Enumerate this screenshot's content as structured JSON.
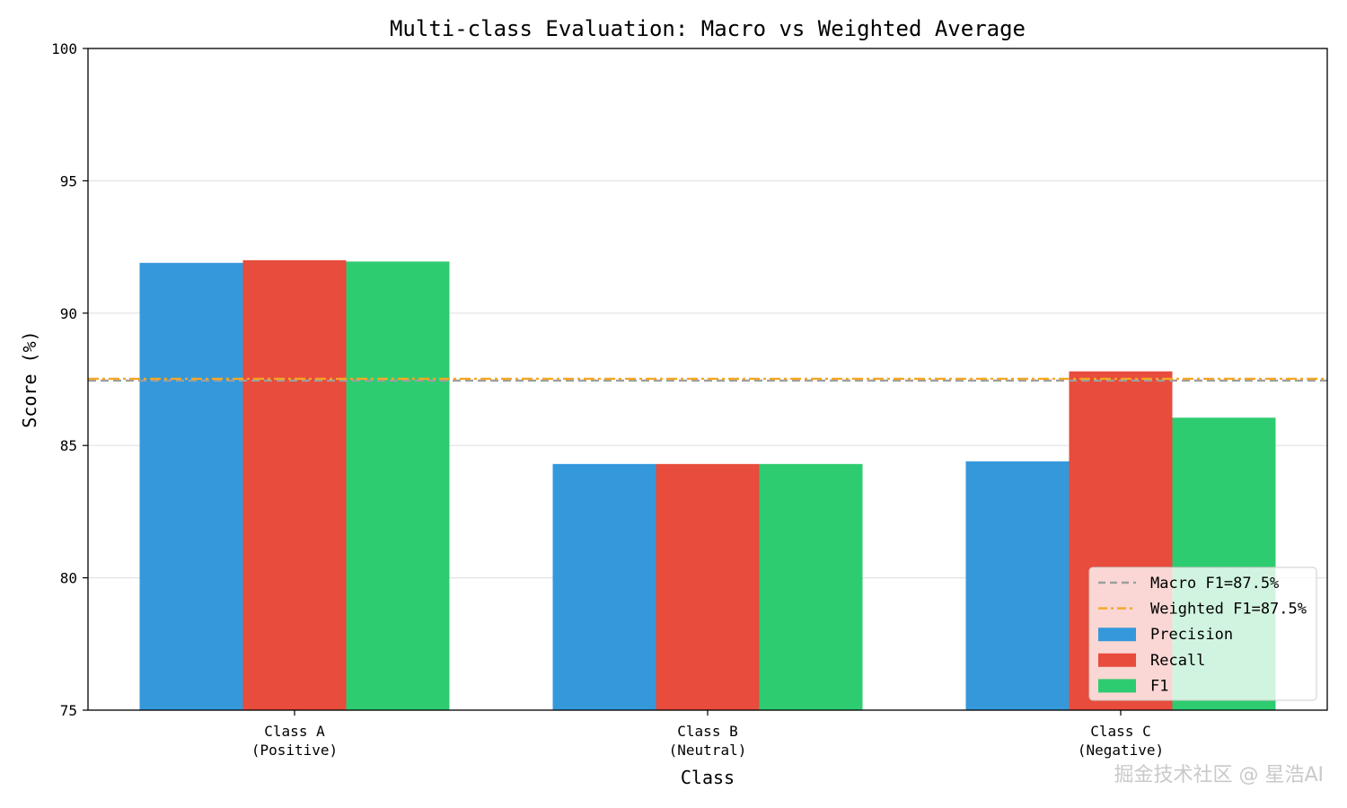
{
  "chart_data": {
    "type": "bar",
    "title": "Multi-class Evaluation: Macro vs Weighted Average",
    "xlabel": "Class",
    "ylabel": "Score (%)",
    "ylim": [
      75,
      100
    ],
    "yticks": [
      75,
      80,
      85,
      90,
      95,
      100
    ],
    "grid": "horizontal",
    "categories": [
      [
        "Class A",
        "(Positive)"
      ],
      [
        "Class B",
        "(Neutral)"
      ],
      [
        "Class C",
        "(Negative)"
      ]
    ],
    "series": [
      {
        "name": "Precision",
        "color": "#3498db",
        "values": [
          91.9,
          84.3,
          84.4
        ]
      },
      {
        "name": "Recall",
        "color": "#e74c3c",
        "values": [
          92.0,
          84.3,
          87.8
        ]
      },
      {
        "name": "F1",
        "color": "#2ecc71",
        "values": [
          91.95,
          84.3,
          86.05
        ]
      }
    ],
    "reference_lines": [
      {
        "name": "Macro F1=87.5%",
        "value": 87.45,
        "style": "dashed",
        "color": "#9e9e9e"
      },
      {
        "name": "Weighted F1=87.5%",
        "value": 87.52,
        "style": "dashdot",
        "color": "#f5a623"
      }
    ],
    "legend_placement": "lower-right"
  },
  "watermark": "掘金技术社区 @ 星浩AI"
}
